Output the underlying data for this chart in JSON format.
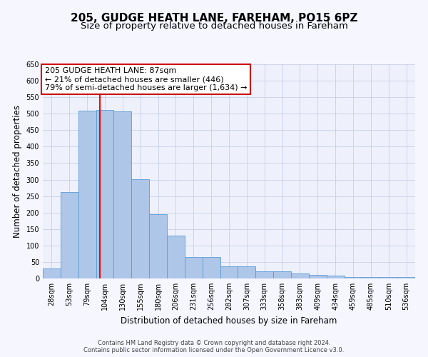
{
  "title": "205, GUDGE HEATH LANE, FAREHAM, PO15 6PZ",
  "subtitle": "Size of property relative to detached houses in Fareham",
  "xlabel": "Distribution of detached houses by size in Fareham",
  "ylabel": "Number of detached properties",
  "categories": [
    "28sqm",
    "53sqm",
    "79sqm",
    "104sqm",
    "130sqm",
    "155sqm",
    "180sqm",
    "206sqm",
    "231sqm",
    "256sqm",
    "282sqm",
    "307sqm",
    "333sqm",
    "358sqm",
    "383sqm",
    "409sqm",
    "434sqm",
    "459sqm",
    "485sqm",
    "510sqm",
    "536sqm"
  ],
  "values": [
    30,
    263,
    510,
    511,
    508,
    302,
    196,
    131,
    65,
    65,
    37,
    37,
    22,
    22,
    15,
    10,
    8,
    5,
    5,
    5,
    5
  ],
  "bar_color": "#aec6e8",
  "bar_edge_color": "#5b9bd5",
  "ylim": [
    0,
    650
  ],
  "yticks": [
    0,
    50,
    100,
    150,
    200,
    250,
    300,
    350,
    400,
    450,
    500,
    550,
    600,
    650
  ],
  "redline_x": 2.72,
  "annotation_line1": "205 GUDGE HEATH LANE: 87sqm",
  "annotation_line2": "← 21% of detached houses are smaller (446)",
  "annotation_line3": "79% of semi-detached houses are larger (1,634) →",
  "annotation_box_color": "#ffffff",
  "annotation_box_edge": "#cc0000",
  "footer1": "Contains HM Land Registry data © Crown copyright and database right 2024.",
  "footer2": "Contains public sector information licensed under the Open Government Licence v3.0.",
  "bg_color": "#eef1fb",
  "grid_color": "#c8d0e8",
  "title_fontsize": 11,
  "subtitle_fontsize": 9.5,
  "tick_fontsize": 7,
  "ylabel_fontsize": 8.5,
  "xlabel_fontsize": 8.5,
  "annotation_fontsize": 8,
  "footer_fontsize": 6
}
